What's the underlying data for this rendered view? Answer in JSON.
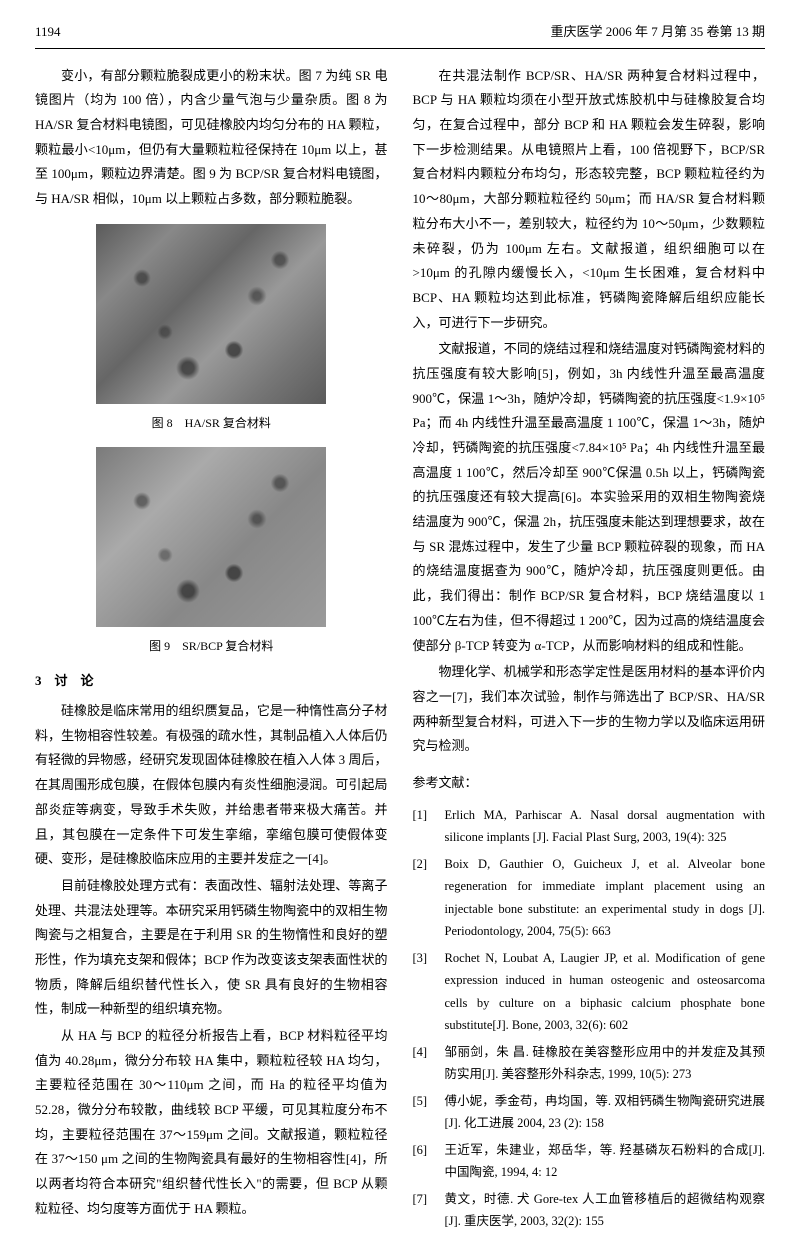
{
  "header": {
    "page_number": "1194",
    "journal_info": "重庆医学 2006 年 7 月第 35 卷第 13 期"
  },
  "paragraphs": {
    "p1": "变小，有部分颗粒脆裂成更小的粉末状。图 7 为纯 SR 电镜图片（均为 100 倍），内含少量气泡与少量杂质。图 8 为 HA/SR 复合材料电镜图，可见硅橡胶内均匀分布的 HA 颗粒，颗粒最小<10μm，但仍有大量颗粒粒径保持在 10μm 以上，甚至 100μm，颗粒边界清楚。图 9 为 BCP/SR 复合材料电镜图，与 HA/SR 相似，10μm 以上颗粒占多数，部分颗粒脆裂。",
    "p2": "硅橡胶是临床常用的组织赝复品，它是一种惰性高分子材料，生物相容性较差。有极强的疏水性，其制品植入人体后仍有轻微的异物感，经研究发现固体硅橡胶在植入人体 3 周后，在其周围形成包膜，在假体包膜内有炎性细胞浸润。可引起局部炎症等病变，导致手术失败，并给患者带来极大痛苦。并且，其包膜在一定条件下可发生挛缩，挛缩包膜可使假体变硬、变形，是硅橡胶临床应用的主要并发症之一[4]。",
    "p3": "目前硅橡胶处理方式有：表面改性、辐射法处理、等离子处理、共混法处理等。本研究采用钙磷生物陶瓷中的双相生物陶瓷与之相复合，主要是在于利用 SR 的生物惰性和良好的塑形性，作为填充支架和假体；BCP 作为改变该支架表面性状的物质，降解后组织替代性长入，使 SR 具有良好的生物相容性，制成一种新型的组织填充物。",
    "p4": "从 HA 与 BCP 的粒径分析报告上看，BCP 材料粒径平均值为 40.28μm，微分分布较 HA 集中，颗粒粒径较 HA 均匀，主要粒径范围在 30～110μm 之间，而 Ha 的粒径平均值为 52.28，微分分布较散，曲线较 BCP 平缓，可见其粒度分布不均，主要粒径范围在 37～159μm 之间。文献报道，颗粒粒径在 37～150 μm 之间的生物陶瓷具有最好的生物相容性[4]，所以两者均符合本研究\"组织替代性长入\"的需要，但 BCP 从颗粒粒径、均匀度等方面优于 HA 颗粒。",
    "p5": "在共混法制作 BCP/SR、HA/SR 两种复合材料过程中，BCP 与 HA 颗粒均须在小型开放式炼胶机中与硅橡胶复合均匀，在复合过程中，部分 BCP 和 HA 颗粒会发生碎裂，影响下一步检测结果。从电镜照片上看，100 倍视野下，BCP/SR 复合材料内颗粒分布均匀，形态较完整，BCP 颗粒粒径约为 10～80μm，大部分颗粒粒径约 50μm；而 HA/SR 复合材料颗粒分布大小不一，差别较大，粒径约为 10～50μm，少数颗粒未碎裂，仍为 100μm 左右。文献报道，组织细胞可以在>10μm 的孔隙内缓慢长入，<10μm 生长困难，复合材料中 BCP、HA 颗粒均达到此标准，钙磷陶瓷降解后组织应能长入，可进行下一步研究。",
    "p6": "文献报道，不同的烧结过程和烧结温度对钙磷陶瓷材料的抗压强度有较大影响[5]，例如，3h 内线性升温至最高温度 900℃，保温 1～3h，随炉冷却，钙磷陶瓷的抗压强度<1.9×10⁵ Pa；而 4h 内线性升温至最高温度 1 100℃，保温 1～3h，随炉冷却，钙磷陶瓷的抗压强度<7.84×10⁵ Pa；4h 内线性升温至最高温度 1 100℃，然后冷却至 900℃保温 0.5h 以上，钙磷陶瓷的抗压强度还有较大提高[6]。本实验采用的双相生物陶瓷烧结温度为 900℃，保温 2h，抗压强度未能达到理想要求，故在与 SR 混炼过程中，发生了少量 BCP 颗粒碎裂的现象，而 HA 的烧结温度据查为 900℃，随炉冷却，抗压强度则更低。由此，我们得出：制作 BCP/SR 复合材料，BCP 烧结温度以 1 100℃左右为佳，但不得超过 1 200℃，因为过高的烧结温度会使部分 β-TCP 转变为 α-TCP，从而影响材料的组成和性能。",
    "p7": "物理化学、机械学和形态学定性是医用材料的基本评价内容之一[7]，我们本次试验，制作与筛选出了 BCP/SR、HA/SR 两种新型复合材料，可进入下一步的生物力学以及临床运用研究与检测。"
  },
  "figures": {
    "fig8_caption": "图 8　HA/SR 复合材料",
    "fig9_caption": "图 9　SR/BCP 复合材料"
  },
  "section": {
    "discussion_title": "3　讨　论"
  },
  "references": {
    "title": "参考文献：",
    "items": [
      {
        "num": "[1]",
        "text": "Erlich MA, Parhiscar A. Nasal dorsal augmentation with silicone implants [J]. Facial Plast Surg, 2003, 19(4): 325"
      },
      {
        "num": "[2]",
        "text": "Boix D, Gauthier O, Guicheux J, et al. Alveolar bone regeneration for immediate implant placement using an injectable bone substitute: an experimental study in dogs [J]. Periodontology, 2004, 75(5): 663"
      },
      {
        "num": "[3]",
        "text": "Rochet N, Loubat A, Laugier JP, et al. Modification of gene expression induced in human osteogenic and osteosarcoma cells by culture on a biphasic calcium phosphate bone substitute[J]. Bone, 2003, 32(6): 602"
      },
      {
        "num": "[4]",
        "text": "邹丽剑，朱 昌. 硅橡胶在美容整形应用中的并发症及其预防实用[J]. 美容整形外科杂志, 1999, 10(5): 273"
      },
      {
        "num": "[5]",
        "text": "傅小妮，季金苟，冉均国，等. 双相钙磷生物陶瓷研究进展 [J]. 化工进展 2004, 23 (2): 158"
      },
      {
        "num": "[6]",
        "text": "王近军，朱建业，郑岳华，等. 羟基磷灰石粉料的合成[J]. 中国陶瓷, 1994, 4: 12"
      },
      {
        "num": "[7]",
        "text": "黄文，时德. 犬 Gore-tex 人工血管移植后的超微结构观察[J]. 重庆医学, 2003, 32(2): 155"
      }
    ]
  }
}
